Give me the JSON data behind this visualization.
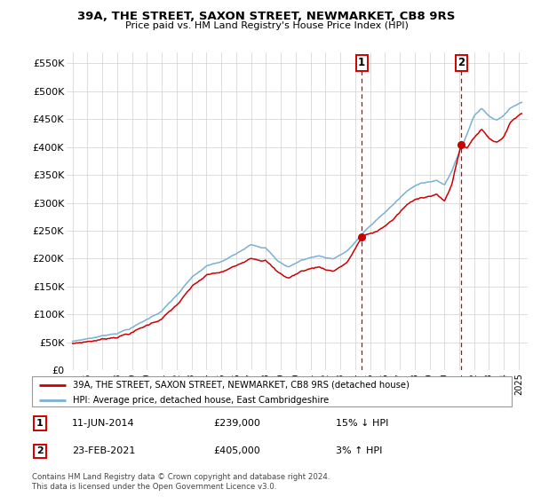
{
  "title": "39A, THE STREET, SAXON STREET, NEWMARKET, CB8 9RS",
  "subtitle": "Price paid vs. HM Land Registry's House Price Index (HPI)",
  "ylabel_ticks": [
    "£0",
    "£50K",
    "£100K",
    "£150K",
    "£200K",
    "£250K",
    "£300K",
    "£350K",
    "£400K",
    "£450K",
    "£500K",
    "£550K"
  ],
  "ytick_values": [
    0,
    50000,
    100000,
    150000,
    200000,
    250000,
    300000,
    350000,
    400000,
    450000,
    500000,
    550000
  ],
  "ylim": [
    0,
    570000
  ],
  "sale1": {
    "date": "11-JUN-2014",
    "price": 239000,
    "label": "1",
    "year": 2014.44,
    "hpi_pct": "15% ↓ HPI"
  },
  "sale2": {
    "date": "23-FEB-2021",
    "price": 405000,
    "label": "2",
    "year": 2021.13,
    "hpi_pct": "3% ↑ HPI"
  },
  "legend_property": "39A, THE STREET, SAXON STREET, NEWMARKET, CB8 9RS (detached house)",
  "legend_hpi": "HPI: Average price, detached house, East Cambridgeshire",
  "footnote": "Contains HM Land Registry data © Crown copyright and database right 2024.\nThis data is licensed under the Open Government Licence v3.0.",
  "property_color": "#cc0000",
  "hpi_color": "#7ab0d4",
  "plot_bg_color": "#ffffff",
  "grid_color": "#d0d0d0"
}
